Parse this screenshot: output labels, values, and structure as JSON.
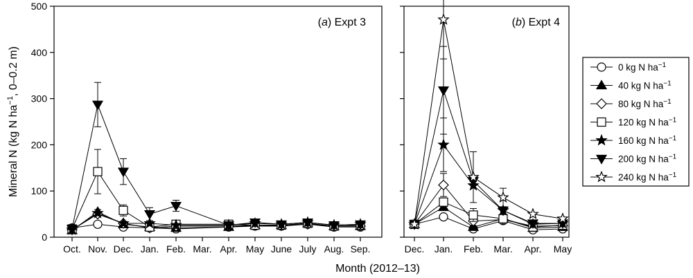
{
  "figure": {
    "xlabel": "Month (2012–13)",
    "ylabel": "Mineral N (kg N ha",
    "ylabel_sup": "−1",
    "ylabel_tail": ", 0–0.2 m)"
  },
  "legend": [
    {
      "label": "0 kg N ha",
      "sup": "−1",
      "marker": "circle-open"
    },
    {
      "label": "40 kg N ha",
      "sup": "−1",
      "marker": "triangle-up-filled"
    },
    {
      "label": "80 kg N ha",
      "sup": "−1",
      "marker": "diamond-open"
    },
    {
      "label": "120 kg N ha",
      "sup": "−1",
      "marker": "square-open"
    },
    {
      "label": "160 kg N ha",
      "sup": "−1",
      "marker": "star-filled"
    },
    {
      "label": "200 kg N ha",
      "sup": "−1",
      "marker": "triangle-down-filled"
    },
    {
      "label": "240 kg N ha",
      "sup": "−1",
      "marker": "star-open"
    }
  ],
  "chart_data": [
    {
      "type": "line",
      "panel_letter": "a",
      "panel_text": " Expt 3",
      "categories": [
        "Oct.",
        "Nov.",
        "Dec.",
        "Jan.",
        "Feb.",
        "Mar.",
        "Apr.",
        "May",
        "June",
        "July",
        "Aug.",
        "Sep."
      ],
      "ylim": [
        0,
        500
      ],
      "yticks": [
        0,
        100,
        200,
        300,
        400,
        500
      ],
      "series": [
        {
          "name": "0 kg N ha−1",
          "marker": "circle-open",
          "x": [
            0,
            1,
            2,
            3,
            4,
            6,
            7,
            8,
            9,
            10,
            11
          ],
          "y": [
            20,
            28,
            22,
            20,
            18,
            22,
            24,
            24,
            28,
            22,
            22
          ],
          "err": [
            0,
            0,
            0,
            0,
            0,
            0,
            0,
            0,
            0,
            0,
            0
          ]
        },
        {
          "name": "40 kg N ha−1",
          "marker": "triangle-up-filled",
          "x": [
            0,
            1,
            2,
            3,
            4,
            6,
            7,
            8,
            9,
            10,
            11
          ],
          "y": [
            15,
            55,
            28,
            22,
            20,
            22,
            26,
            26,
            30,
            24,
            24
          ],
          "err": [
            0,
            5,
            5,
            0,
            0,
            0,
            0,
            0,
            0,
            0,
            0
          ]
        },
        {
          "name": "80 kg N ha−1",
          "marker": "diamond-open",
          "x": [
            0,
            1,
            2,
            3,
            4,
            6,
            7,
            8,
            9,
            10,
            11
          ],
          "y": [
            16,
            50,
            30,
            20,
            24,
            24,
            26,
            25,
            28,
            24,
            24
          ],
          "err": [
            0,
            0,
            0,
            0,
            0,
            0,
            0,
            0,
            0,
            0,
            0
          ]
        },
        {
          "name": "120 kg N ha−1",
          "marker": "square-open",
          "x": [
            0,
            1,
            2,
            3,
            4,
            6,
            7,
            8,
            9,
            10,
            11
          ],
          "y": [
            18,
            142,
            58,
            22,
            28,
            28,
            26,
            26,
            30,
            24,
            26
          ],
          "err": [
            0,
            48,
            12,
            0,
            0,
            0,
            0,
            0,
            0,
            0,
            0
          ]
        },
        {
          "name": "160 kg N ha−1",
          "marker": "star-filled",
          "x": [
            0,
            1,
            2,
            3,
            4,
            6,
            7,
            8,
            9,
            10,
            11
          ],
          "y": [
            16,
            52,
            30,
            30,
            26,
            26,
            30,
            28,
            32,
            26,
            28
          ],
          "err": [
            0,
            0,
            0,
            0,
            0,
            0,
            0,
            0,
            0,
            0,
            0
          ]
        },
        {
          "name": "200 kg N ha−1",
          "marker": "triangle-down-filled",
          "x": [
            0,
            1,
            2,
            3,
            4,
            6,
            7,
            8,
            9,
            10,
            11
          ],
          "y": [
            18,
            287,
            142,
            50,
            68,
            26,
            32,
            28,
            32,
            26,
            28
          ],
          "err": [
            0,
            48,
            28,
            14,
            12,
            0,
            0,
            0,
            0,
            0,
            0
          ]
        },
        {
          "name": "240 kg N ha−1",
          "marker": "star-open",
          "x": [],
          "y": [],
          "err": []
        }
      ]
    },
    {
      "type": "line",
      "panel_letter": "b",
      "panel_text": " Expt 4",
      "categories": [
        "Dec.",
        "Jan.",
        "Feb.",
        "Mar.",
        "Apr.",
        "May"
      ],
      "ylim": [
        0,
        500
      ],
      "yticks": [
        0,
        100,
        200,
        300,
        400,
        500
      ],
      "series": [
        {
          "name": "0 kg N ha−1",
          "marker": "circle-open",
          "x": [
            0,
            1,
            2,
            3,
            4,
            5
          ],
          "y": [
            28,
            44,
            18,
            36,
            16,
            18
          ],
          "err": [
            0,
            0,
            0,
            0,
            0,
            0
          ]
        },
        {
          "name": "40 kg N ha−1",
          "marker": "triangle-up-filled",
          "x": [
            0,
            1,
            2,
            3,
            4,
            5
          ],
          "y": [
            28,
            65,
            22,
            40,
            20,
            22
          ],
          "err": [
            0,
            0,
            0,
            0,
            0,
            0
          ]
        },
        {
          "name": "80 kg N ha−1",
          "marker": "diamond-open",
          "x": [
            0,
            1,
            2,
            3,
            4,
            5
          ],
          "y": [
            28,
            113,
            35,
            38,
            24,
            25
          ],
          "err": [
            0,
            25,
            0,
            0,
            0,
            0
          ]
        },
        {
          "name": "120 kg N ha−1",
          "marker": "square-open",
          "x": [
            0,
            1,
            2,
            3,
            4,
            5
          ],
          "y": [
            28,
            76,
            48,
            40,
            22,
            26
          ],
          "err": [
            0,
            0,
            14,
            0,
            0,
            0
          ]
        },
        {
          "name": "160 kg N ha−1",
          "marker": "star-filled",
          "x": [
            0,
            1,
            2,
            3,
            4,
            5
          ],
          "y": [
            28,
            200,
            112,
            58,
            28,
            30
          ],
          "err": [
            0,
            58,
            0,
            0,
            0,
            0
          ]
        },
        {
          "name": "200 kg N ha−1",
          "marker": "triangle-down-filled",
          "x": [
            0,
            1,
            2,
            3,
            4,
            5
          ],
          "y": [
            28,
            318,
            122,
            58,
            30,
            30
          ],
          "err": [
            0,
            95,
            0,
            0,
            0,
            0
          ]
        },
        {
          "name": "240 kg N ha−1",
          "marker": "star-open",
          "x": [
            0,
            1,
            2,
            3,
            4,
            5
          ],
          "y": [
            28,
            471,
            130,
            86,
            50,
            40
          ],
          "err": [
            0,
            85,
            55,
            20,
            0,
            0
          ]
        }
      ]
    }
  ]
}
